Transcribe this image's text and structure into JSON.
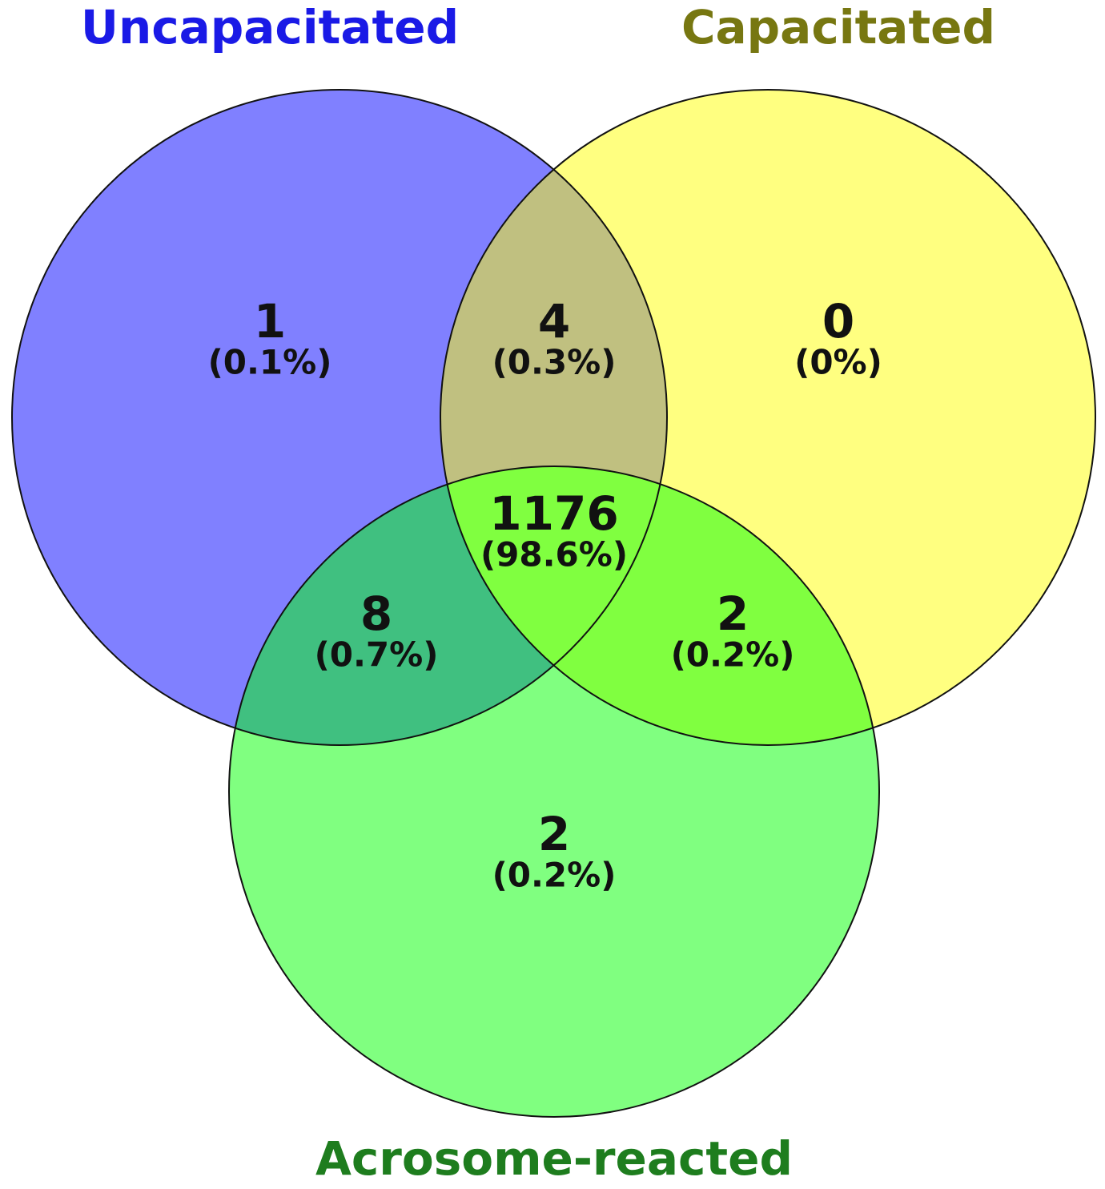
{
  "chart_data": {
    "type": "venn",
    "sets": [
      {
        "name": "Uncapacitated",
        "color": "#8080ff",
        "label_color": "#1a1ae6"
      },
      {
        "name": "Capacitated",
        "color": "#ffff80",
        "label_color": "#777711"
      },
      {
        "name": "Acrosome-reacted",
        "color": "#80ff80",
        "label_color": "#1e7d1e"
      }
    ],
    "regions": [
      {
        "sets": [
          0
        ],
        "value": 1,
        "label": "(0.1%)"
      },
      {
        "sets": [
          0,
          1
        ],
        "value": 4,
        "label": "(0.3%)",
        "color": "#c0c080"
      },
      {
        "sets": [
          1
        ],
        "value": 0,
        "label": "(0%)"
      },
      {
        "sets": [
          0,
          1,
          2
        ],
        "value": 1176,
        "label": "(98.6%)",
        "color": "#60e040"
      },
      {
        "sets": [
          0,
          2
        ],
        "value": 8,
        "label": "(0.7%)",
        "color": "#40c080"
      },
      {
        "sets": [
          1,
          2
        ],
        "value": 2,
        "label": "(0.2%)",
        "color": "#80ff40"
      },
      {
        "sets": [
          2
        ],
        "value": 2,
        "label": "(0.2%)"
      }
    ]
  }
}
